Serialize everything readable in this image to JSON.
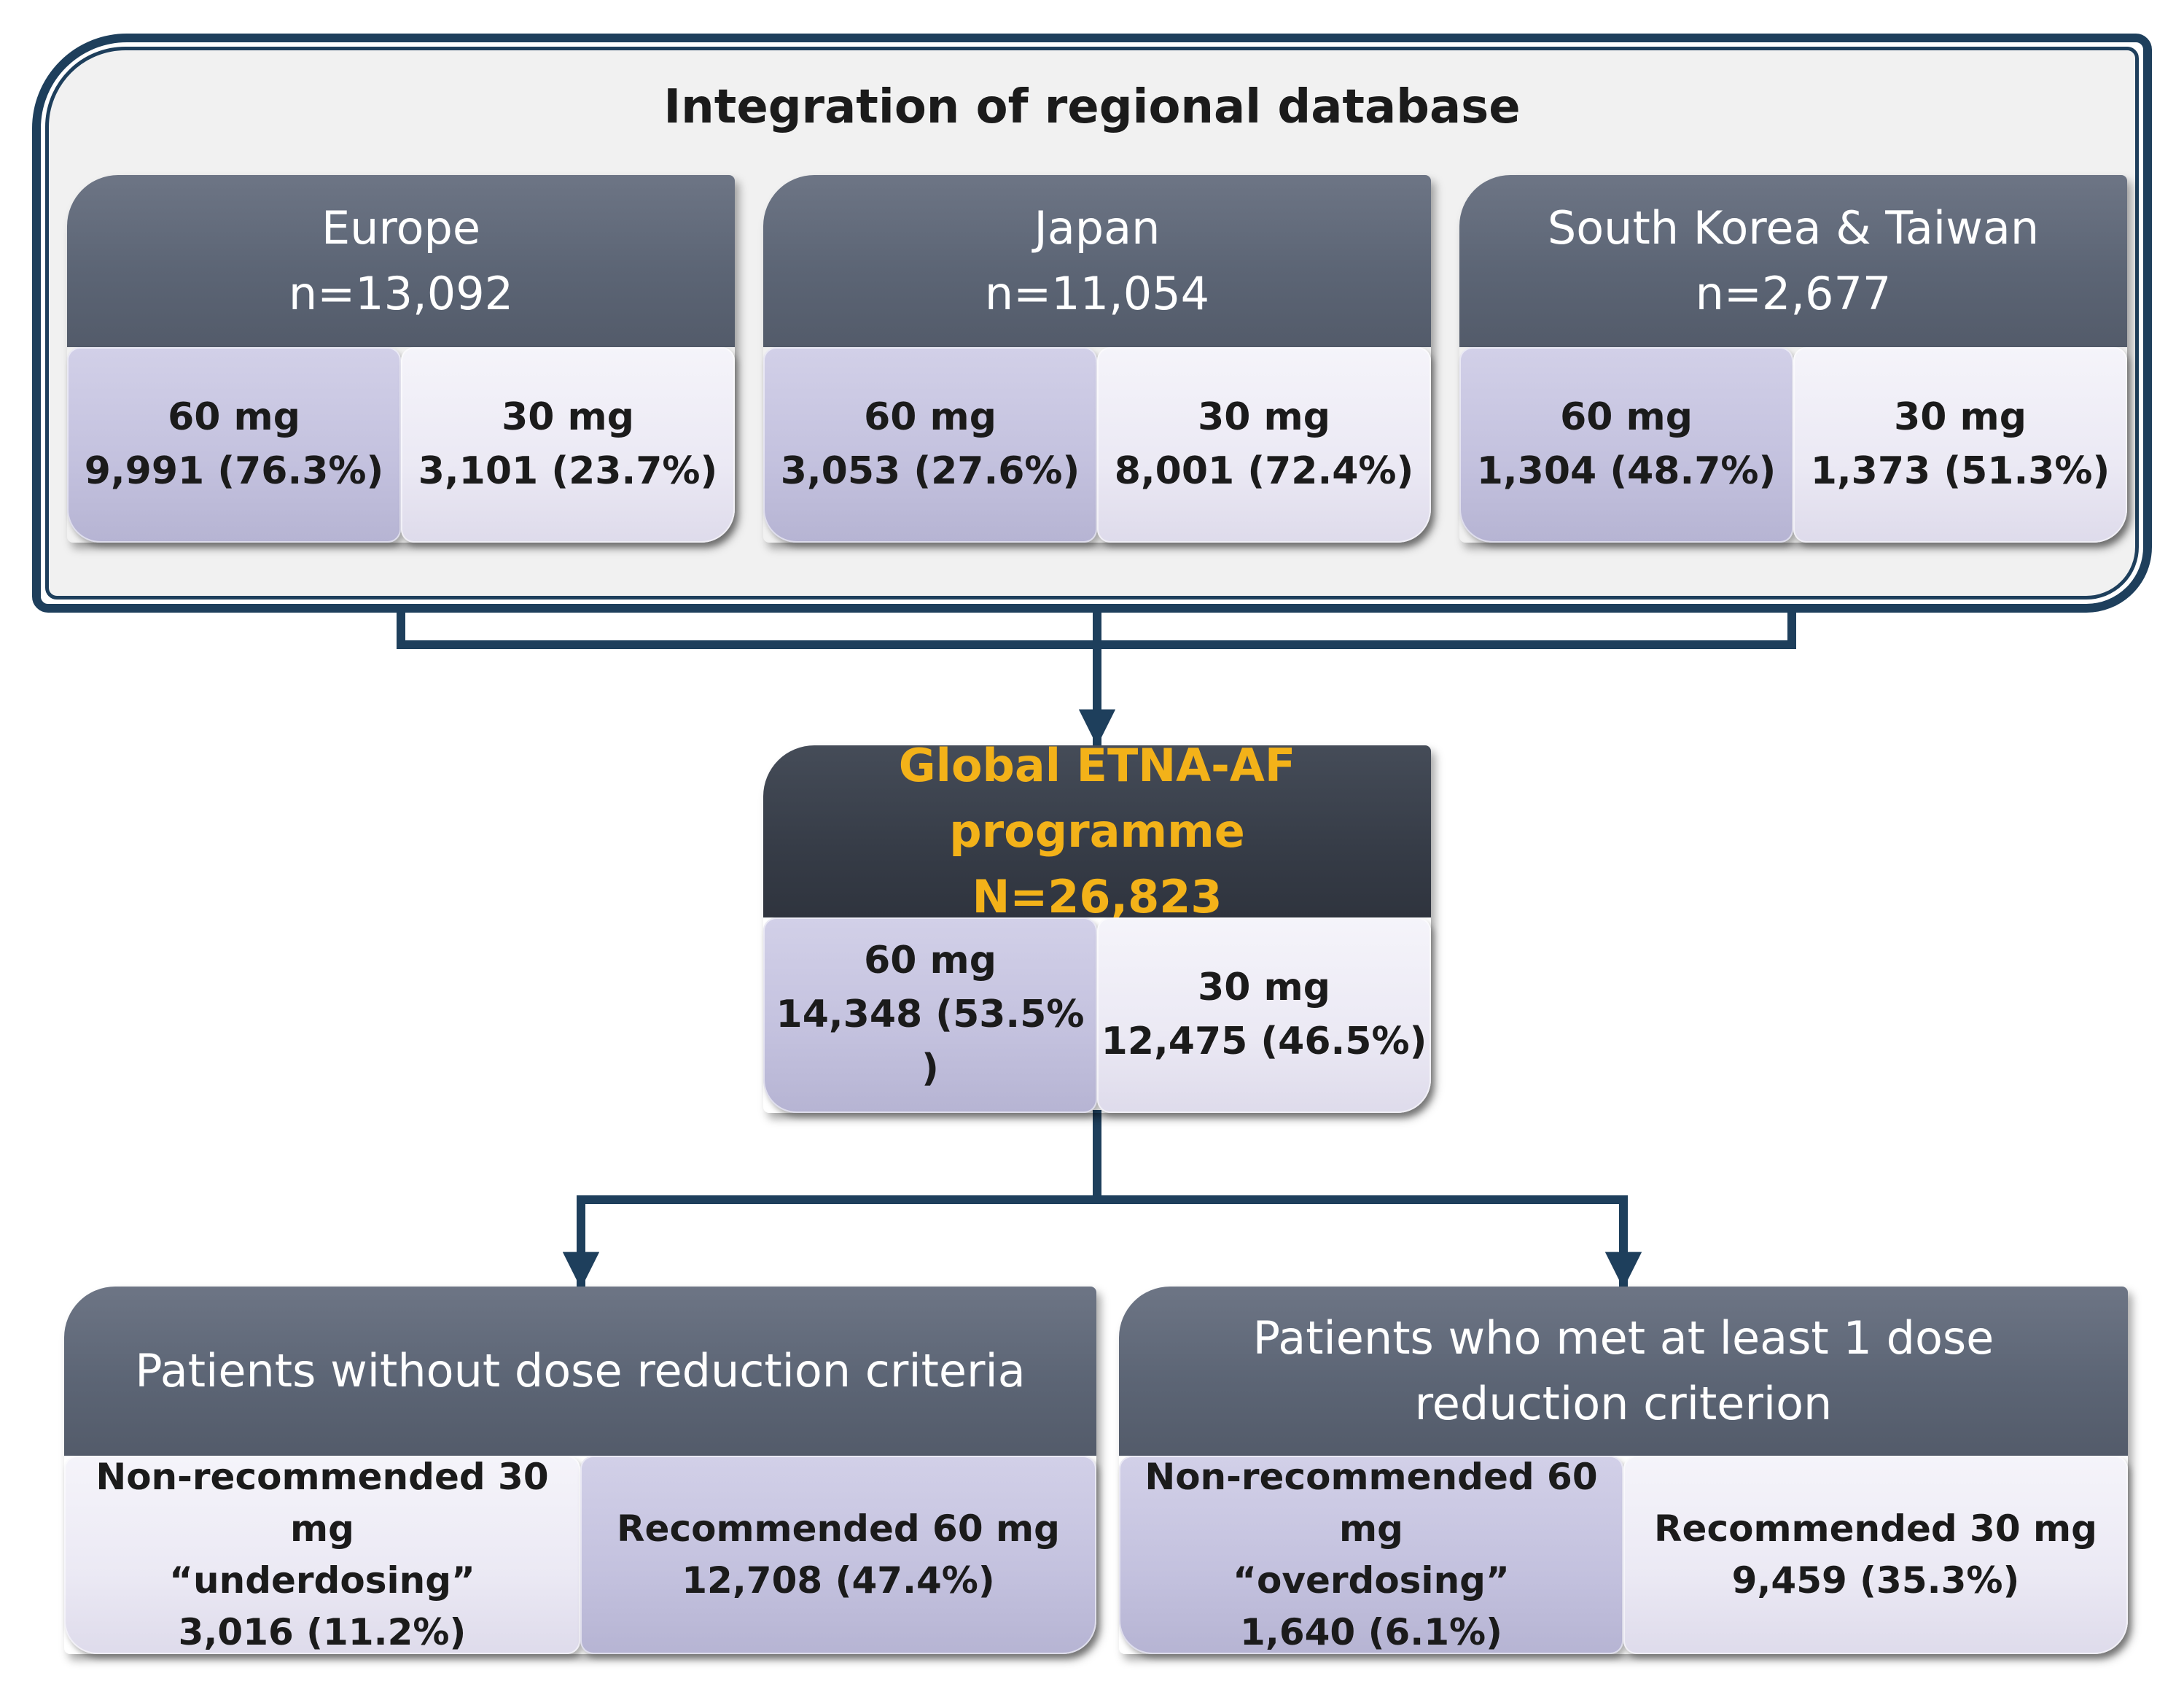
{
  "header": {
    "title": "Integration of regional database"
  },
  "regions": [
    {
      "name": "Europe",
      "n": "n=13,092",
      "dose60": {
        "label": "60 mg",
        "value": "9,991 (76.3%)"
      },
      "dose30": {
        "label": "30 mg",
        "value": "3,101 (23.7%)"
      }
    },
    {
      "name": "Japan",
      "n": "n=11,054",
      "dose60": {
        "label": "60 mg",
        "value": "3,053 (27.6%)"
      },
      "dose30": {
        "label": "30 mg",
        "value": "8,001 (72.4%)"
      }
    },
    {
      "name": "South Korea & Taiwan",
      "n": "n=2,677",
      "dose60": {
        "label": "60 mg",
        "value": "1,304 (48.7%)"
      },
      "dose30": {
        "label": "30 mg",
        "value": "1,373 (51.3%)"
      }
    }
  ],
  "global": {
    "title": "Global ETNA-AF programme",
    "n": "N=26,823",
    "dose60": {
      "label": "60 mg",
      "value": "14,348 (53.5% )"
    },
    "dose30": {
      "label": "30 mg",
      "value": "12,475 (46.5%)"
    }
  },
  "groups": [
    {
      "title": "Patients without dose reduction criteria",
      "left": {
        "line1": "Non-recommended 30 mg",
        "line2": "“underdosing”",
        "line3": "3,016 (11.2%)"
      },
      "right": {
        "line1": "Recommended 60 mg",
        "line2": "12,708 (47.4%)"
      }
    },
    {
      "title_line1": "Patients who met at least 1 dose",
      "title_line2": "reduction criterion",
      "left": {
        "line1": "Non-recommended 60 mg",
        "line2": "“overdosing”",
        "line3": "1,640 (6.1%)"
      },
      "right": {
        "line1": "Recommended 30 mg",
        "line2": "9,459 (35.3%)"
      }
    }
  ],
  "colors": {
    "connector": "#1e3f5c",
    "header_fill": "#5c6575",
    "global_header_fill": "#363c47",
    "global_title_text": "#f3b219",
    "cell_lavender": "#c3c1de",
    "cell_light": "#ebe9f4"
  }
}
